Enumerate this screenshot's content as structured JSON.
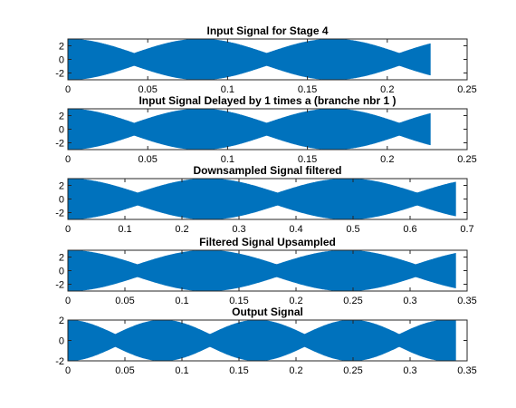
{
  "chart_data": [
    {
      "type": "line",
      "title": "Input Signal for Stage 4",
      "xlabel": "",
      "ylabel": "",
      "xlim": [
        0,
        0.25
      ],
      "ylim": [
        -3,
        3
      ],
      "xticks": [
        "0",
        "0.05",
        "0.1",
        "0.15",
        "0.2",
        "0.25"
      ],
      "yticks": [
        "2",
        "0",
        "-2"
      ],
      "color": "#0072bd",
      "x_end": 0.227,
      "carrier_amplitude": 3.0,
      "envelope_period": 0.083,
      "envelope_min": 0.3,
      "envelope_phase": 0.0,
      "envelope_shape": "abs-sine",
      "legend": "none",
      "grid": false
    },
    {
      "type": "line",
      "title": "Input Signal Delayed by 1 times a (branche nbr 1 )",
      "xlabel": "",
      "ylabel": "",
      "xlim": [
        0,
        0.25
      ],
      "ylim": [
        -3,
        3
      ],
      "xticks": [
        "0",
        "0.05",
        "0.1",
        "0.15",
        "0.2",
        "0.25"
      ],
      "yticks": [
        "2",
        "0",
        "-2"
      ],
      "color": "#0072bd",
      "x_end": 0.227,
      "carrier_amplitude": 3.0,
      "envelope_period": 0.083,
      "envelope_min": 0.3,
      "envelope_phase": 0.0,
      "envelope_shape": "abs-sine",
      "legend": "none",
      "grid": false
    },
    {
      "type": "line",
      "title": "Downsampled Signal filtered",
      "xlabel": "",
      "ylabel": "",
      "xlim": [
        0,
        0.7
      ],
      "ylim": [
        -3,
        3
      ],
      "xticks": [
        "0",
        "0.1",
        "0.2",
        "0.3",
        "0.4",
        "0.5",
        "0.6",
        "0.7"
      ],
      "yticks": [
        "2",
        "0",
        "-2"
      ],
      "color": "#0072bd",
      "x_end": 0.68,
      "carrier_amplitude": 3.0,
      "envelope_period": 0.245,
      "envelope_min": 0.3,
      "envelope_phase": 0.0,
      "envelope_shape": "abs-sine",
      "legend": "none",
      "grid": false
    },
    {
      "type": "line",
      "title": "Filtered Signal Upsampled",
      "xlabel": "",
      "ylabel": "",
      "xlim": [
        0,
        0.35
      ],
      "ylim": [
        -3,
        3
      ],
      "xticks": [
        "0",
        "0.05",
        "0.1",
        "0.15",
        "0.2",
        "0.25",
        "0.3",
        "0.35"
      ],
      "yticks": [
        "2",
        "0",
        "-2"
      ],
      "color": "#0072bd",
      "x_end": 0.34,
      "carrier_amplitude": 3.0,
      "envelope_period": 0.122,
      "envelope_min": 0.3,
      "envelope_phase": 0.0,
      "envelope_shape": "abs-sine",
      "legend": "none",
      "grid": false
    },
    {
      "type": "line",
      "title": "Output Signal",
      "xlabel": "",
      "ylabel": "",
      "xlim": [
        0,
        0.35
      ],
      "ylim": [
        -2,
        2
      ],
      "xticks": [
        "0",
        "0.05",
        "0.1",
        "0.15",
        "0.2",
        "0.25",
        "0.3",
        "0.35"
      ],
      "yticks": [
        "2",
        "0",
        "-2"
      ],
      "color": "#0072bd",
      "x_end": 0.34,
      "carrier_amplitude": 2.0,
      "envelope_period": 0.083,
      "envelope_min": 0.3,
      "envelope_phase": 0.0,
      "envelope_shape": "abs-sine",
      "legend": "none",
      "grid": false
    }
  ]
}
